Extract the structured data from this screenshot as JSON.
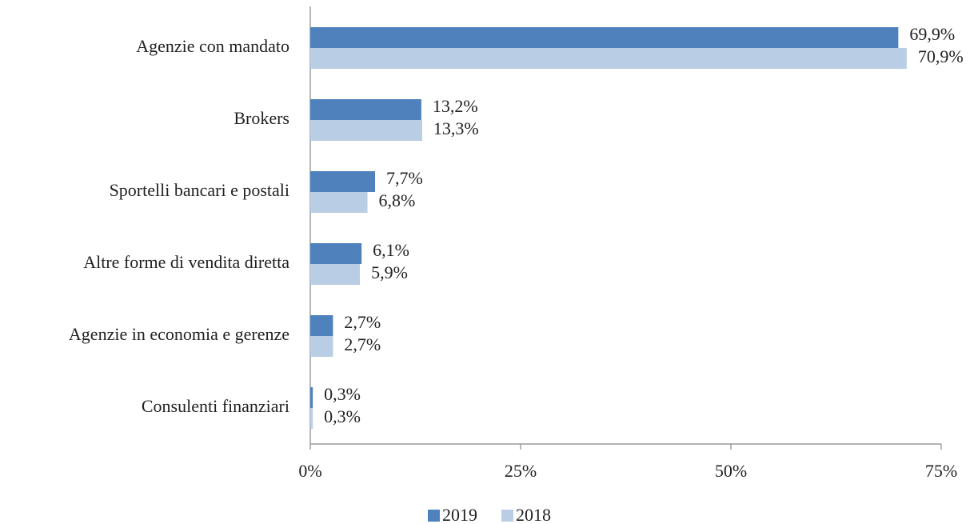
{
  "chart_data": {
    "type": "bar",
    "orientation": "horizontal",
    "categories": [
      "Agenzie con mandato",
      "Brokers",
      "Sportelli bancari e postali",
      "Altre forme di vendita diretta",
      "Agenzie in economia e gerenze",
      "Consulenti finanziari"
    ],
    "series": [
      {
        "name": "2019",
        "color": "#4f81bd",
        "values": [
          69.9,
          13.2,
          7.7,
          6.1,
          2.7,
          0.3
        ],
        "value_labels": [
          "69,9%",
          "13,2%",
          "7,7%",
          "6,1%",
          "2,7%",
          "0,3%"
        ]
      },
      {
        "name": "2018",
        "color": "#b9cde5",
        "values": [
          70.9,
          13.3,
          6.8,
          5.9,
          2.7,
          0.3
        ],
        "value_labels": [
          "70,9%",
          "13,3%",
          "6,8%",
          "5,9%",
          "2,7%",
          "0,3%"
        ]
      }
    ],
    "xlim": [
      0,
      75
    ],
    "xticks": [
      {
        "value": 0,
        "label": "0%"
      },
      {
        "value": 25,
        "label": "25%"
      },
      {
        "value": 50,
        "label": "50%"
      },
      {
        "value": 75,
        "label": "75%"
      }
    ],
    "legend": "bottom"
  }
}
